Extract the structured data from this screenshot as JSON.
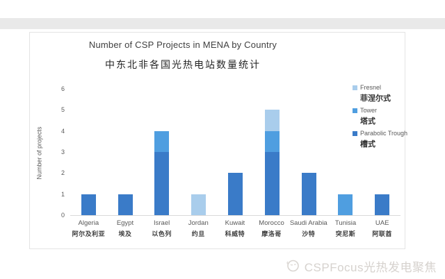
{
  "chart_data": {
    "type": "bar",
    "stacked": true,
    "title": "Number of CSP Projects in MENA by Country",
    "subtitle_zh": "中东北非各国光热电站数量统计",
    "xlabel": "",
    "ylabel": "Number of projects",
    "ylim": [
      0,
      6
    ],
    "y_ticks": [
      0,
      1,
      2,
      3,
      4,
      5,
      6
    ],
    "grid": false,
    "legend_position": "right",
    "categories": [
      "Algeria",
      "Egypt",
      "Israel",
      "Jordan",
      "Kuwait",
      "Morocco",
      "Saudi Arabia",
      "Tunisia",
      "UAE"
    ],
    "categories_zh": [
      "阿尔及利亚",
      "埃及",
      "以色列",
      "约旦",
      "科威特",
      "摩洛哥",
      "沙特",
      "突尼斯",
      "阿联酋"
    ],
    "series": [
      {
        "name": "Parabolic Trough",
        "name_zh": "槽式",
        "color": "#3a7bc8",
        "values": [
          1,
          1,
          3,
          0,
          2,
          3,
          2,
          0,
          1
        ]
      },
      {
        "name": "Tower",
        "name_zh": "塔式",
        "color": "#4f9ee0",
        "values": [
          0,
          0,
          1,
          0,
          0,
          1,
          0,
          1,
          0
        ]
      },
      {
        "name": "Fresnel",
        "name_zh": "菲涅尔式",
        "color": "#a9cdec",
        "values": [
          0,
          0,
          0,
          1,
          0,
          1,
          0,
          0,
          0
        ]
      }
    ],
    "legend": [
      {
        "label": "Fresnel",
        "label_zh": "菲涅尔式",
        "color": "#a9cdec"
      },
      {
        "label": "Tower",
        "label_zh": "塔式",
        "color": "#4f9ee0"
      },
      {
        "label": "Parabolic Trough",
        "label_zh": "槽式",
        "color": "#3a7bc8"
      }
    ],
    "totals": [
      1,
      1,
      4,
      1,
      2,
      5,
      2,
      1,
      1
    ]
  },
  "ui": {
    "watermark": {
      "text": "CSPFocus光热发电聚焦",
      "logo_icon": "cspfocus-sun-logo",
      "color": "#d6d2ce"
    }
  }
}
